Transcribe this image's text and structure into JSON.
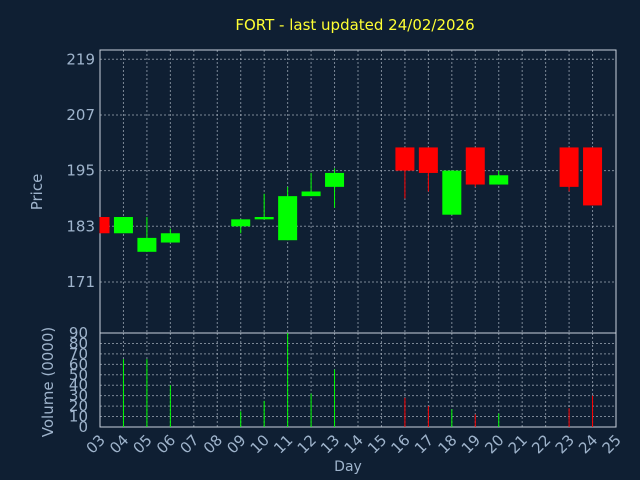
{
  "chart_data": {
    "type": "candlestick",
    "title": "FORT - last updated 24/02/2026",
    "xlabel": "Day",
    "price_panel": {
      "ylabel": "Price",
      "ylim": [
        160,
        221
      ],
      "yticks": [
        171,
        183,
        195,
        207,
        219
      ]
    },
    "volume_panel": {
      "ylabel": "Volume (0000)",
      "ylim": [
        0,
        90
      ],
      "yticks": [
        0,
        10,
        20,
        30,
        40,
        50,
        60,
        70,
        80,
        90
      ]
    },
    "x_ticks": [
      "03",
      "04",
      "05",
      "06",
      "07",
      "08",
      "09",
      "10",
      "11",
      "12",
      "13",
      "14",
      "15",
      "16",
      "17",
      "18",
      "19",
      "20",
      "21",
      "22",
      "23",
      "24",
      "25"
    ],
    "grid": true,
    "colors": {
      "background": "#0f1f33",
      "up": "#00ff00",
      "down": "#ff0000",
      "title": "#ffff33",
      "axis_text": "#9fb4cc",
      "grid": "#aab4c0"
    },
    "candles": [
      {
        "day": "03",
        "open": 185,
        "close": 181.5,
        "high": 185,
        "low": 181.5,
        "volume": 0
      },
      {
        "day": "04",
        "open": 181.5,
        "close": 185,
        "high": 185,
        "low": 181.5,
        "volume": 65
      },
      {
        "day": "05",
        "open": 177.5,
        "close": 180.5,
        "high": 185,
        "low": 177.5,
        "volume": 65
      },
      {
        "day": "06",
        "open": 179.5,
        "close": 181.5,
        "high": 182.5,
        "low": 179.5,
        "volume": 40
      },
      {
        "day": "09",
        "open": 183,
        "close": 184.5,
        "high": 184.5,
        "low": 181.5,
        "volume": 15
      },
      {
        "day": "10",
        "open": 184.5,
        "close": 185,
        "high": 190,
        "low": 184.5,
        "volume": 25
      },
      {
        "day": "11",
        "open": 180,
        "close": 189.5,
        "high": 191.5,
        "low": 180,
        "volume": 90
      },
      {
        "day": "12",
        "open": 189.5,
        "close": 190.5,
        "high": 194.5,
        "low": 189.5,
        "volume": 32
      },
      {
        "day": "13",
        "open": 191.5,
        "close": 194.5,
        "high": 195.5,
        "low": 187,
        "volume": 55
      },
      {
        "day": "16",
        "open": 200,
        "close": 195,
        "high": 200,
        "low": 189,
        "volume": 28
      },
      {
        "day": "17",
        "open": 200,
        "close": 194.5,
        "high": 200,
        "low": 190.5,
        "volume": 20
      },
      {
        "day": "18",
        "open": 185.5,
        "close": 195,
        "high": 195,
        "low": 185.5,
        "volume": 17
      },
      {
        "day": "19",
        "open": 200,
        "close": 192,
        "high": 200,
        "low": 191.5,
        "volume": 12
      },
      {
        "day": "20",
        "open": 192,
        "close": 194,
        "high": 195,
        "low": 192,
        "volume": 13
      },
      {
        "day": "23",
        "open": 200,
        "close": 191.5,
        "high": 200,
        "low": 190.5,
        "volume": 18
      },
      {
        "day": "24",
        "open": 200,
        "close": 187.5,
        "high": 200,
        "low": 187.5,
        "volume": 30
      }
    ]
  }
}
